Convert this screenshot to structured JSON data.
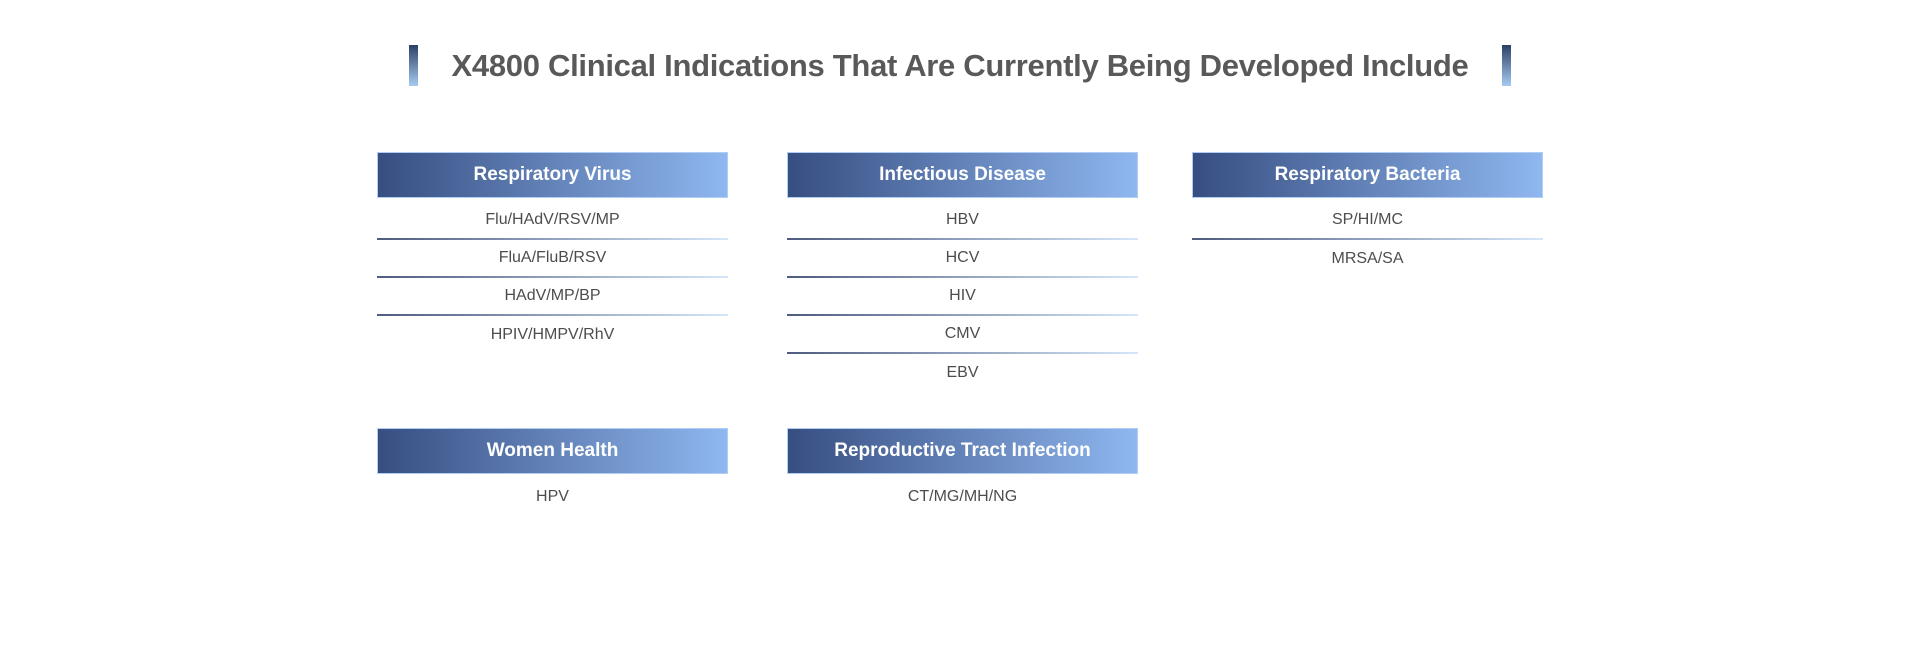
{
  "title": {
    "text": "X4800 Clinical Indications That Are Currently Being Developed Include"
  },
  "theme": {
    "background": "#ffffff",
    "title_text_color": "#595959",
    "accent_bar_top": "#2c4067",
    "accent_bar_bottom": "#a6cbf2",
    "header_gradient_left": "#374e81",
    "header_gradient_right": "#8fb7f0",
    "header_text_color": "#ffffff",
    "header_border_color": "#b0cef5",
    "divider_gradient_left": "#4f5b7e",
    "divider_gradient_right": "#d5e7fa",
    "item_text_color": "#4d4d4d"
  },
  "groups": [
    {
      "title": "Respiratory Virus",
      "items": [
        "Flu/HAdV/RSV/MP",
        "FluA/FluB/RSV",
        "HAdV/MP/BP",
        "HPIV/HMPV/RhV"
      ]
    },
    {
      "title": "Infectious Disease",
      "items": [
        "HBV",
        "HCV",
        "HIV",
        "CMV",
        "EBV"
      ]
    },
    {
      "title": "Respiratory Bacteria",
      "items": [
        "SP/HI/MC",
        "MRSA/SA"
      ]
    },
    {
      "title": "Women Health",
      "items": [
        "HPV"
      ]
    },
    {
      "title": "Reproductive Tract Infection",
      "items": [
        "CT/MG/MH/NG"
      ]
    }
  ]
}
